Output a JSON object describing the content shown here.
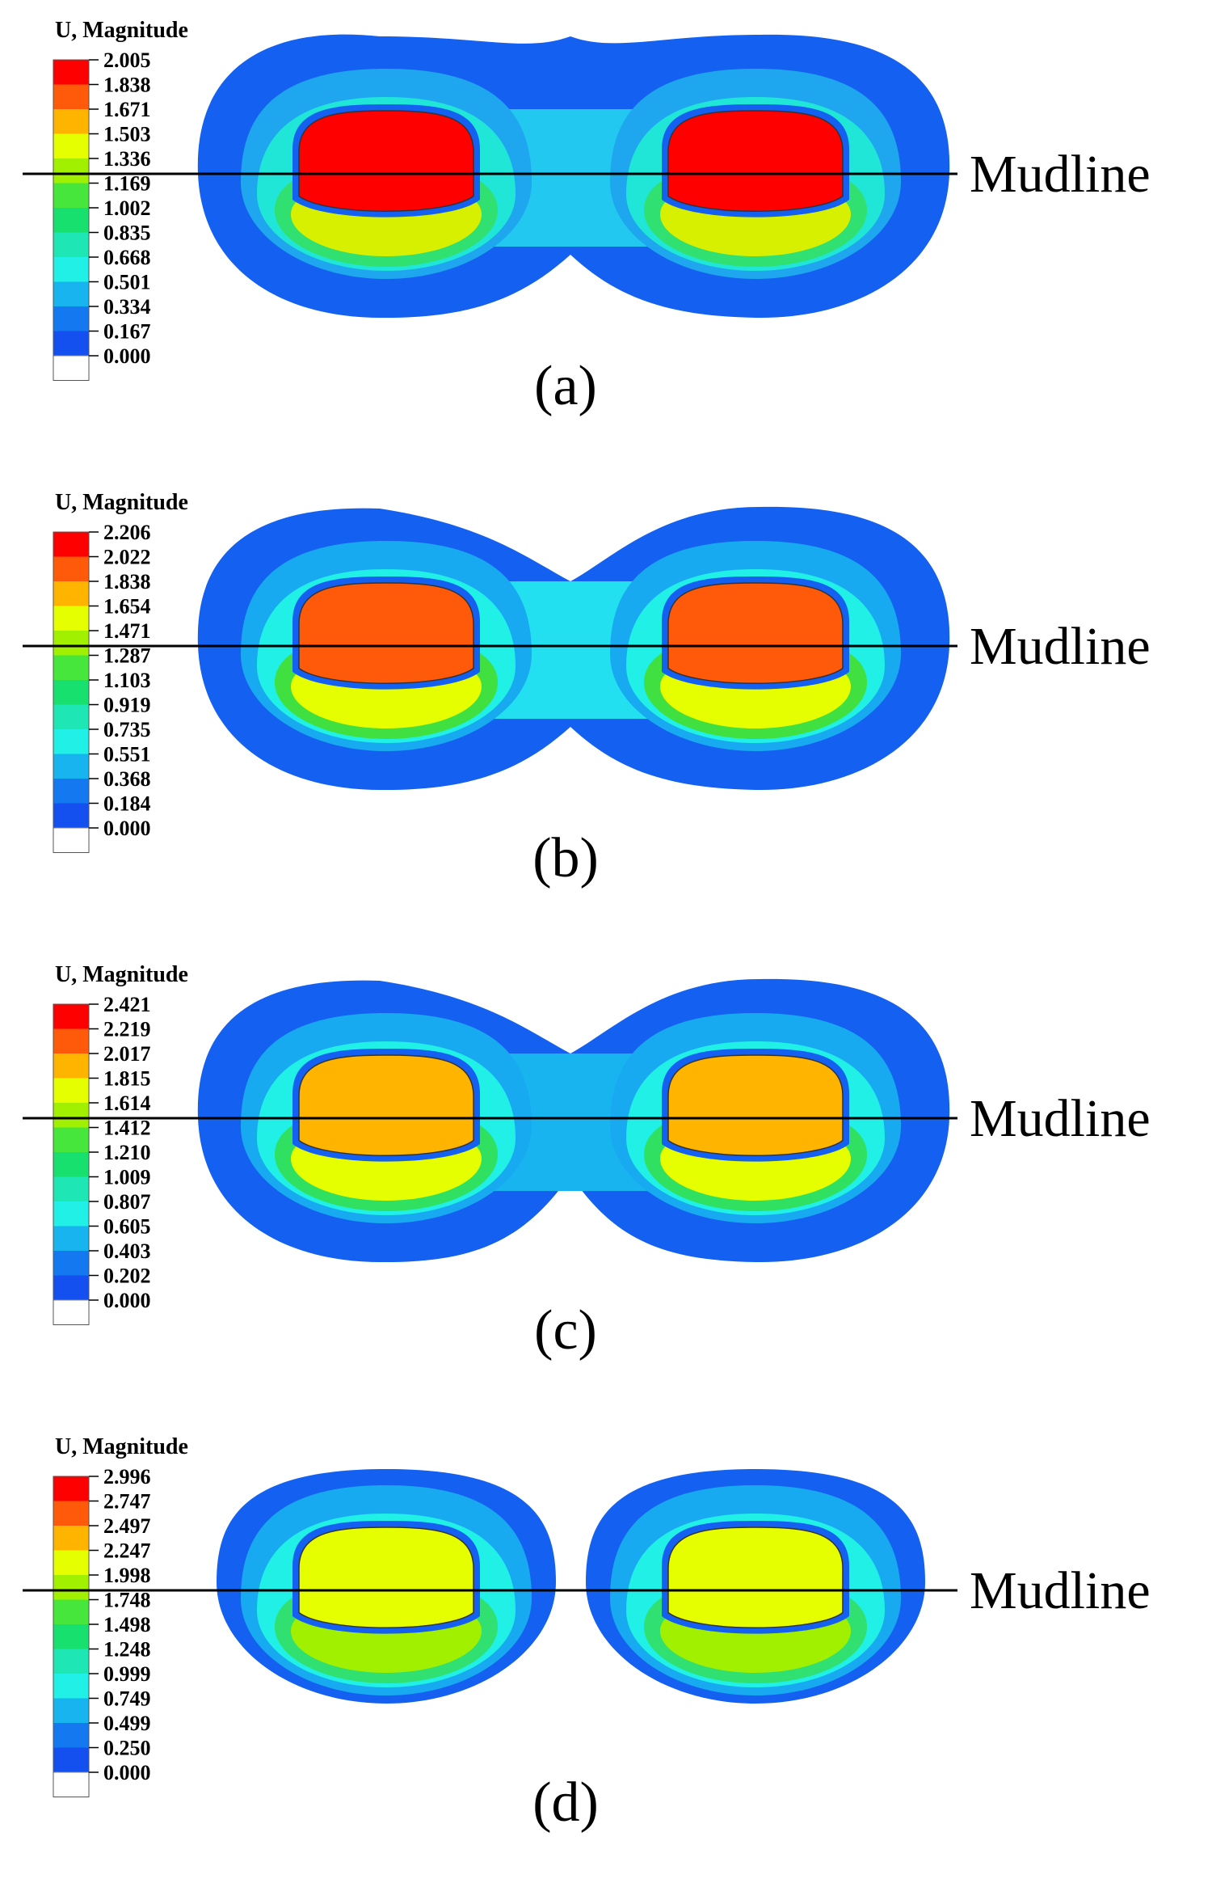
{
  "legend_colors": [
    "#ff0000",
    "#ff5a0a",
    "#ffb400",
    "#e6ff00",
    "#a0f000",
    "#46e63c",
    "#18e06e",
    "#1ee6b4",
    "#20f0e6",
    "#18b4f0",
    "#1478f0",
    "#1450f0",
    "#ffffff"
  ],
  "panels": [
    {
      "label": "(a)",
      "legend_title": "U, Magnitude",
      "legend_values": [
        "2.005",
        "1.838",
        "1.671",
        "1.503",
        "1.336",
        "1.169",
        "1.002",
        "0.835",
        "0.668",
        "0.501",
        "0.334",
        "0.167",
        "0.000"
      ],
      "mudline_label": "Mudline",
      "colors": {
        "outer": "#1460f0",
        "ring1": "#1ea6ee",
        "ring2": "#20e6d8",
        "ring3": "#30e070",
        "ring4": "#d6f000",
        "core": "#ff0000",
        "bridge": "#22c8f0"
      }
    },
    {
      "label": "(b)",
      "legend_title": "U, Magnitude",
      "legend_values": [
        "2.206",
        "2.022",
        "1.838",
        "1.654",
        "1.471",
        "1.287",
        "1.103",
        "0.919",
        "0.735",
        "0.551",
        "0.368",
        "0.184",
        "0.000"
      ],
      "mudline_label": "Mudline",
      "colors": {
        "outer": "#1460f0",
        "ring1": "#18aaf0",
        "ring2": "#20f0e6",
        "ring3": "#40e040",
        "ring4": "#e6ff00",
        "core": "#ff5a0a",
        "bridge": "#22e0f0"
      }
    },
    {
      "label": "(c)",
      "legend_title": "U, Magnitude",
      "legend_values": [
        "2.421",
        "2.219",
        "2.017",
        "1.815",
        "1.614",
        "1.412",
        "1.210",
        "1.009",
        "0.807",
        "0.605",
        "0.403",
        "0.202",
        "0.000"
      ],
      "mudline_label": "Mudline",
      "colors": {
        "outer": "#1460f0",
        "ring1": "#18aaf0",
        "ring2": "#20f0e6",
        "ring3": "#30e060",
        "ring4": "#e6ff00",
        "core": "#ffb400",
        "bridge": "#18b4f0"
      }
    },
    {
      "label": "(d)",
      "legend_title": "U, Magnitude",
      "legend_values": [
        "2.996",
        "2.747",
        "2.497",
        "2.247",
        "1.998",
        "1.748",
        "1.498",
        "1.248",
        "0.999",
        "0.749",
        "0.499",
        "0.250",
        "0.000"
      ],
      "mudline_label": "Mudline",
      "colors": {
        "outer": "#1460f0",
        "ring1": "#18aaf0",
        "ring2": "#20f0e6",
        "ring3": "#30e070",
        "ring4": "#a0f000",
        "core": "#e6ff00",
        "bridge": "#ffffff"
      }
    }
  ]
}
